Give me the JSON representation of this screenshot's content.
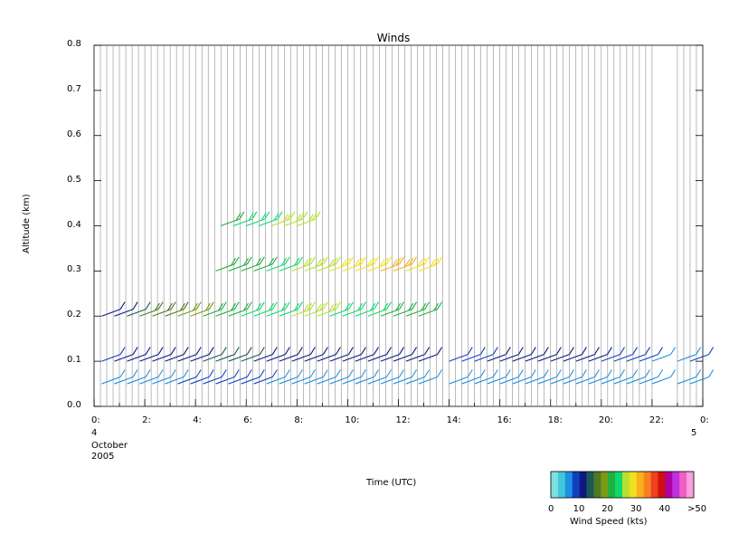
{
  "chart_data": {
    "type": "scatter",
    "title": "Winds",
    "xlabel": "Time (UTC)",
    "ylabel": "Altitude (km)",
    "xlim": [
      0,
      24
    ],
    "ylim": [
      0.0,
      0.8
    ],
    "x_ticks": [
      "0:",
      "2:",
      "4:",
      "6:",
      "8:",
      "10:",
      "12:",
      "14:",
      "16:",
      "18:",
      "20:",
      "22:",
      "0:"
    ],
    "x_tick_values": [
      0,
      2,
      4,
      6,
      8,
      10,
      12,
      14,
      16,
      18,
      20,
      22,
      24
    ],
    "y_ticks": [
      "0.0",
      "0.1",
      "0.2",
      "0.3",
      "0.4",
      "0.5",
      "0.6",
      "0.7",
      "0.8"
    ],
    "y_tick_values": [
      0.0,
      0.1,
      0.2,
      0.3,
      0.4,
      0.5,
      0.6,
      0.7,
      0.8
    ],
    "date_start": {
      "day": "4",
      "month": "October",
      "year": "2005"
    },
    "date_end": {
      "day": "5"
    },
    "grid": "vertical lines at each profile time",
    "marker": "wind barbs colored by speed",
    "colorbar": {
      "title": "Wind Speed (kts)",
      "tick_labels": [
        "0",
        "10",
        "20",
        "30",
        "40",
        ">50"
      ],
      "colors": [
        "#7fe0e0",
        "#40c8d8",
        "#1e90e0",
        "#1040c0",
        "#101880",
        "#1c5858",
        "#507820",
        "#7a9a18",
        "#20b040",
        "#10d870",
        "#b8e030",
        "#f0e020",
        "#f8b020",
        "#f88020",
        "#f04020",
        "#d01010",
        "#b000a0",
        "#c030e0",
        "#f060c0",
        "#f8a0e0"
      ]
    },
    "series": [
      {
        "x": [
          0.3,
          0.8,
          1.3,
          1.8,
          2.3,
          2.8,
          3.3,
          3.8,
          4.3,
          4.8,
          5.3,
          5.8,
          6.3,
          6.8,
          7.3,
          7.8,
          8.3,
          8.8,
          9.3,
          9.8,
          10.3,
          10.8,
          11.3,
          11.8,
          12.3,
          12.8
        ],
        "y": 0.05,
        "speed": [
          5,
          6,
          6,
          7,
          7,
          7,
          8,
          8,
          8,
          8,
          8,
          8,
          8,
          7,
          7,
          7,
          7,
          6,
          6,
          6,
          6,
          6,
          6,
          6,
          6,
          6
        ]
      },
      {
        "x": [
          0.3,
          0.8,
          1.3,
          1.8,
          2.3,
          2.8,
          3.3,
          3.8,
          4.3,
          4.8,
          5.3,
          5.8,
          6.3,
          6.8,
          7.3,
          7.8,
          8.3,
          8.8,
          9.3,
          9.8,
          10.3,
          10.8,
          11.3,
          11.8,
          12.3,
          12.8
        ],
        "y": 0.1,
        "speed": [
          9,
          10,
          10,
          11,
          11,
          12,
          12,
          12,
          13,
          13,
          13,
          13,
          12,
          12,
          12,
          11,
          11,
          11,
          10,
          10,
          10,
          10,
          10,
          10,
          10,
          10
        ]
      },
      {
        "x": [
          0.3,
          0.8,
          1.3,
          1.8,
          2.3,
          2.8,
          3.3,
          3.8,
          4.3,
          4.8,
          5.3,
          5.8,
          6.3,
          6.8,
          7.3,
          7.8,
          8.3,
          8.8,
          9.3,
          9.8,
          10.3,
          10.8,
          11.3,
          11.8,
          12.3,
          12.8
        ],
        "y": 0.2,
        "speed": [
          10,
          12,
          13,
          15,
          16,
          17,
          18,
          19,
          20,
          21,
          22,
          23,
          23,
          24,
          24,
          25,
          25,
          25,
          24,
          24,
          23,
          23,
          22,
          22,
          21,
          20
        ]
      },
      {
        "x": [
          4.8,
          5.3,
          5.8,
          6.3,
          6.8,
          7.3,
          7.8,
          8.3,
          8.8,
          9.3,
          9.8,
          10.3,
          10.8,
          11.3,
          11.8,
          12.3,
          12.8
        ],
        "y": 0.3,
        "speed": [
          20,
          21,
          22,
          22,
          23,
          24,
          25,
          26,
          27,
          28,
          28,
          29,
          29,
          30,
          30,
          29,
          28
        ]
      },
      {
        "x": [
          5.0,
          5.5,
          6.0,
          6.5,
          7.0,
          7.5,
          8.0
        ],
        "y": 0.4,
        "speed": [
          22,
          23,
          24,
          24,
          25,
          26,
          26
        ]
      },
      {
        "x": [
          14.0,
          14.5,
          15.0,
          15.5,
          16.0,
          16.5,
          17.0,
          17.5,
          18.0,
          18.5,
          19.0,
          19.5,
          20.0,
          20.5,
          21.0,
          21.5,
          22.0,
          23.0,
          23.5
        ],
        "y": 0.1,
        "speed": [
          8,
          9,
          9,
          10,
          10,
          11,
          11,
          12,
          12,
          11,
          10,
          10,
          9,
          9,
          8,
          8,
          7,
          7,
          8
        ]
      },
      {
        "x": [
          14.0,
          14.5,
          15.0,
          15.5,
          16.0,
          16.5,
          17.0,
          17.5,
          18.0,
          18.5,
          19.0,
          19.5,
          20.0,
          20.5,
          21.0,
          21.5,
          22.0,
          23.0,
          23.5
        ],
        "y": 0.05,
        "speed": [
          5,
          6,
          6,
          6,
          6,
          7,
          7,
          7,
          7,
          7,
          6,
          6,
          6,
          5,
          5,
          5,
          5,
          5,
          6
        ]
      }
    ]
  }
}
